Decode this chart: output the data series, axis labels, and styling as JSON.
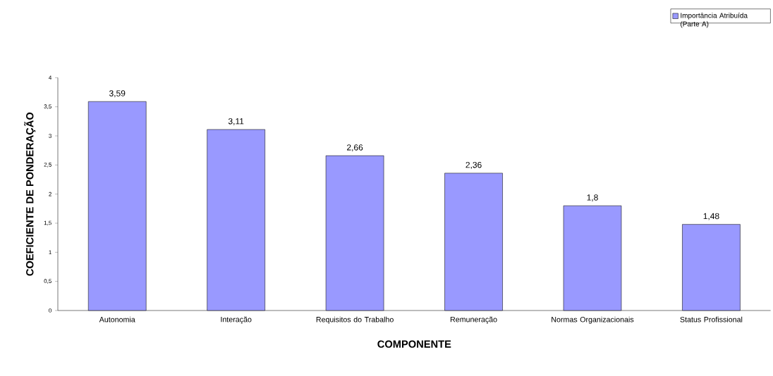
{
  "chart_data": {
    "type": "bar",
    "xlabel": "COMPONENTE",
    "ylabel": "COEFICIENTE DE PONDERAÇÃO",
    "categories": [
      "Autonomia",
      "Interação",
      "Requisitos do Trabalho",
      "Remuneração",
      "Normas Organizacionais",
      "Status Profissional"
    ],
    "series": [
      {
        "name": "Importância Atribuída (Parte A)",
        "color": "#9999ff",
        "values": [
          3.59,
          3.11,
          2.66,
          2.36,
          1.8,
          1.48
        ],
        "value_labels": [
          "3,59",
          "3,11",
          "2,66",
          "2,36",
          "1,8",
          "1,48"
        ]
      }
    ],
    "ylim": [
      0,
      4
    ],
    "yticks": [
      0,
      {
        "value": 0.5,
        "label": "0,5"
      },
      1,
      {
        "value": 1.5,
        "label": "1,5"
      },
      2,
      {
        "value": 2.5,
        "label": "2,5"
      },
      3,
      {
        "value": 3.5,
        "label": "3,5"
      },
      4
    ],
    "grid": false,
    "legend": "top right"
  }
}
